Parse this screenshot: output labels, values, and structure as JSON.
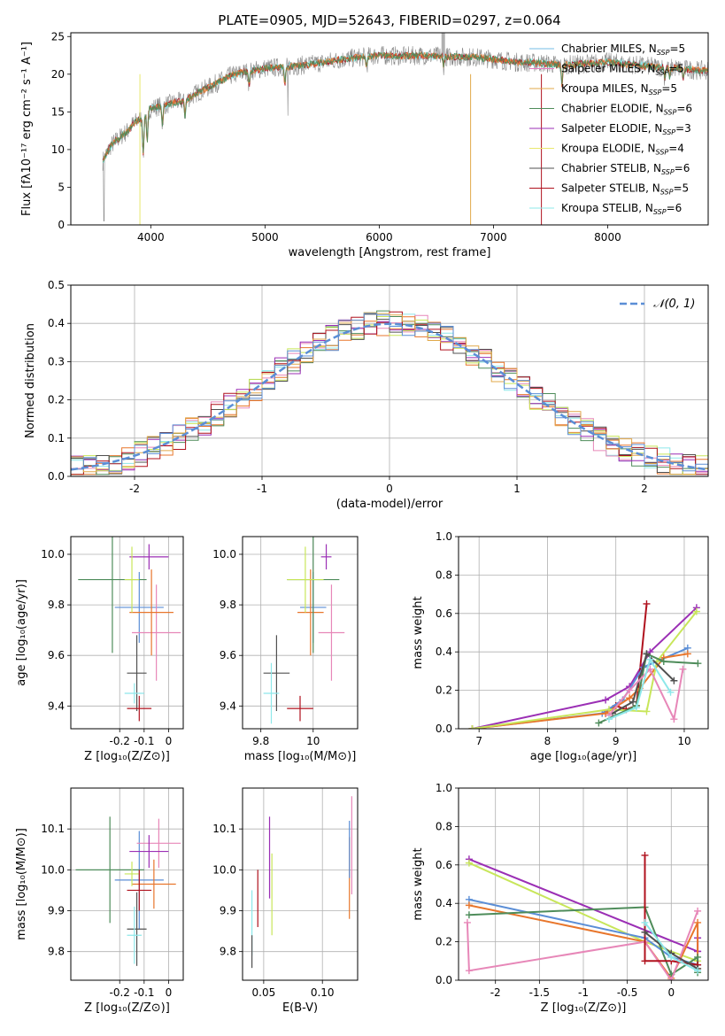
{
  "title": "PLATE=0905, MJD=52643, FIBERID=0297, z=0.064",
  "colors": {
    "chabrier_miles": "#74bde6",
    "salpeter_miles": "#e67ac0",
    "kroupa_miles": "#e1a84a",
    "chabrier_elodie": "#4e8c5a",
    "salpeter_elodie": "#9b2fb5",
    "kroupa_elodie": "#e9e86e",
    "chabrier_stelib": "#505050",
    "salpeter_stelib": "#b0121e",
    "kroupa_stelib": "#8ee8ea",
    "blue": "#5b8ed6",
    "orange": "#e8762c",
    "green": "#c8e65a",
    "pink": "#e787b8",
    "gray_data": "#8a8a8a"
  },
  "chart_data": [
    {
      "id": "spectrum",
      "type": "line",
      "xlabel": "wavelength [Angstrom, rest frame]",
      "ylabel": "Flux [fλ10⁻¹⁷ erg cm⁻² s⁻¹ A⁻¹]",
      "xlim": [
        3300,
        8880
      ],
      "ylim": [
        0,
        25.5
      ],
      "xticks": [
        4000,
        5000,
        6000,
        7000,
        8000
      ],
      "yticks": [
        0,
        5,
        10,
        15,
        20,
        25
      ],
      "envelope": {
        "x": [
          3580,
          3650,
          3720,
          3800,
          3850,
          3950,
          4000,
          4100,
          4200,
          4300,
          4400,
          4500,
          4600,
          4700,
          4800,
          4900,
          5000,
          5200,
          5400,
          5600,
          5800,
          6000,
          6200,
          6400,
          6600,
          6800,
          7000,
          7200,
          7400,
          7600,
          7800,
          8000,
          8200,
          8400,
          8600,
          8800
        ],
        "y": [
          8.5,
          10.5,
          11.5,
          12.5,
          13.5,
          14.5,
          15.5,
          15.8,
          16.2,
          16.5,
          17.5,
          18.2,
          19.0,
          19.8,
          20.2,
          20.5,
          20.8,
          21.0,
          21.3,
          21.8,
          22.2,
          22.5,
          22.4,
          22.5,
          22.3,
          22.3,
          22.0,
          21.6,
          21.5,
          21.2,
          21.4,
          21.6,
          21.3,
          21.0,
          20.8,
          20.5
        ]
      },
      "legend": [
        {
          "label": "Chabrier MILES, N",
          "sub": "SSP",
          "n": "=5",
          "color": "chabrier_miles"
        },
        {
          "label": "Salpeter MILES, N",
          "sub": "SSP",
          "n": "=5",
          "color": "salpeter_miles"
        },
        {
          "label": "Kroupa MILES, N",
          "sub": "SSP",
          "n": "=5",
          "color": "kroupa_miles"
        },
        {
          "label": "Chabrier ELODIE, N",
          "sub": "SSP",
          "n": "=6",
          "color": "chabrier_elodie"
        },
        {
          "label": "Salpeter ELODIE, N",
          "sub": "SSP",
          "n": "=3",
          "color": "salpeter_elodie"
        },
        {
          "label": "Kroupa ELODIE, N",
          "sub": "SSP",
          "n": "=4",
          "color": "kroupa_elodie"
        },
        {
          "label": "Chabrier STELIB, N",
          "sub": "SSP",
          "n": "=6",
          "color": "chabrier_stelib"
        },
        {
          "label": "Salpeter STELIB, N",
          "sub": "SSP",
          "n": "=5",
          "color": "salpeter_stelib"
        },
        {
          "label": "Kroupa STELIB, N",
          "sub": "SSP",
          "n": "=6",
          "color": "kroupa_stelib"
        }
      ]
    },
    {
      "id": "residuals",
      "type": "histogram",
      "xlabel": "(data-model)/error",
      "ylabel": "Normed distribution",
      "xlim": [
        -2.5,
        2.5
      ],
      "ylim": [
        0,
        0.5
      ],
      "xticks": [
        -2,
        -1,
        0,
        1,
        2
      ],
      "yticks": [
        0.0,
        0.1,
        0.2,
        0.3,
        0.4,
        0.5
      ],
      "legend_label": "𝒩(0, 1)",
      "bin_width": 0.1
    },
    {
      "id": "age_vs_z",
      "type": "errorbar",
      "xlabel": "Z [log₁₀(Z/Z⊙)]",
      "ylabel": "age  [log₁₀(age/yr)]",
      "xlim": [
        -0.4,
        0.06
      ],
      "ylim": [
        9.31,
        10.07
      ],
      "xticks": [
        -0.2,
        -0.1,
        0.0
      ],
      "yticks": [
        9.4,
        9.6,
        9.8,
        10.0
      ],
      "points": [
        {
          "x": -0.12,
          "y": 9.79,
          "xerr": 0.1,
          "yerr": 0.14,
          "color": "blue"
        },
        {
          "x": -0.05,
          "y": 9.69,
          "xerr": 0.1,
          "yerr": 0.19,
          "color": "pink"
        },
        {
          "x": -0.07,
          "y": 9.77,
          "xerr": 0.09,
          "yerr": 0.17,
          "color": "orange"
        },
        {
          "x": -0.23,
          "y": 9.9,
          "xerr": 0.14,
          "yerr": 0.29,
          "color": "chabrier_elodie"
        },
        {
          "x": -0.08,
          "y": 9.99,
          "xerr": 0.08,
          "yerr": 0.05,
          "color": "salpeter_elodie"
        },
        {
          "x": -0.15,
          "y": 9.9,
          "xerr": 0.03,
          "yerr": 0.13,
          "color": "green"
        },
        {
          "x": -0.13,
          "y": 9.53,
          "xerr": 0.04,
          "yerr": 0.15,
          "color": "chabrier_stelib"
        },
        {
          "x": -0.12,
          "y": 9.39,
          "xerr": 0.05,
          "yerr": 0.05,
          "color": "salpeter_stelib"
        },
        {
          "x": -0.14,
          "y": 9.45,
          "xerr": 0.04,
          "yerr": 0.04,
          "color": "kroupa_stelib"
        }
      ]
    },
    {
      "id": "age_vs_mass",
      "type": "errorbar",
      "xlabel": "mass [log₁₀(M/M⊙)]",
      "ylabel": "",
      "xlim": [
        9.73,
        10.17
      ],
      "ylim": [
        9.31,
        10.07
      ],
      "xticks": [
        9.8,
        10.0
      ],
      "yticks": [
        9.4,
        9.6,
        9.8,
        10.0
      ],
      "points": [
        {
          "x": 10.0,
          "y": 9.79,
          "xerr": 0.05,
          "yerr": 0.14,
          "color": "blue"
        },
        {
          "x": 10.07,
          "y": 9.69,
          "xerr": 0.05,
          "yerr": 0.19,
          "color": "pink"
        },
        {
          "x": 9.99,
          "y": 9.77,
          "xerr": 0.05,
          "yerr": 0.17,
          "color": "orange"
        },
        {
          "x": 10.0,
          "y": 9.9,
          "xerr": 0.1,
          "yerr": 0.29,
          "color": "chabrier_elodie"
        },
        {
          "x": 10.05,
          "y": 9.99,
          "xerr": 0.02,
          "yerr": 0.05,
          "color": "salpeter_elodie"
        },
        {
          "x": 9.97,
          "y": 9.9,
          "xerr": 0.07,
          "yerr": 0.13,
          "color": "green"
        },
        {
          "x": 9.86,
          "y": 9.53,
          "xerr": 0.05,
          "yerr": 0.15,
          "color": "chabrier_stelib"
        },
        {
          "x": 9.95,
          "y": 9.39,
          "xerr": 0.05,
          "yerr": 0.05,
          "color": "salpeter_stelib"
        },
        {
          "x": 9.84,
          "y": 9.45,
          "xerr": 0.03,
          "yerr": 0.12,
          "color": "kroupa_stelib"
        }
      ]
    },
    {
      "id": "weight_vs_age",
      "type": "line",
      "xlabel": "age  [log₁₀(age/yr)]",
      "ylabel": "mass weight",
      "xlim": [
        6.7,
        10.35
      ],
      "ylim": [
        0,
        1
      ],
      "xticks": [
        7,
        8,
        9,
        10
      ],
      "yticks": [
        0.0,
        0.2,
        0.4,
        0.6,
        0.8,
        1.0
      ],
      "series": [
        {
          "color": "salpeter_elodie",
          "x": [
            6.9,
            8.85,
            9.2,
            9.5,
            10.18
          ],
          "y": [
            0.0,
            0.15,
            0.22,
            0.4,
            0.63
          ]
        },
        {
          "color": "salpeter_stelib",
          "x": [
            8.85,
            9.0,
            9.15,
            9.3,
            9.45
          ],
          "y": [
            0.08,
            0.12,
            0.1,
            0.12,
            0.65
          ]
        },
        {
          "color": "blue",
          "x": [
            6.9,
            8.8,
            9.1,
            9.4,
            10.05
          ],
          "y": [
            0.0,
            0.08,
            0.15,
            0.32,
            0.42
          ]
        },
        {
          "color": "orange",
          "x": [
            6.9,
            8.85,
            9.2,
            9.35,
            9.7,
            10.05
          ],
          "y": [
            0.0,
            0.08,
            0.16,
            0.21,
            0.37,
            0.39
          ]
        },
        {
          "color": "green",
          "x": [
            6.9,
            8.9,
            9.45,
            9.6,
            10.18
          ],
          "y": [
            0.0,
            0.1,
            0.09,
            0.35,
            0.61
          ]
        },
        {
          "color": "chabrier_elodie",
          "x": [
            8.75,
            9.3,
            9.45,
            9.7,
            10.2
          ],
          "y": [
            0.03,
            0.12,
            0.39,
            0.35,
            0.34
          ]
        },
        {
          "color": "chabrier_stelib",
          "x": [
            8.95,
            9.25,
            9.45,
            9.85
          ],
          "y": [
            0.08,
            0.14,
            0.39,
            0.25
          ]
        },
        {
          "color": "pink",
          "x": [
            8.9,
            9.2,
            9.5,
            9.85,
            9.98
          ],
          "y": [
            0.07,
            0.2,
            0.31,
            0.05,
            0.31
          ]
        },
        {
          "color": "kroupa_stelib",
          "x": [
            8.9,
            9.3,
            9.5,
            9.8
          ],
          "y": [
            0.05,
            0.11,
            0.36,
            0.19
          ]
        }
      ]
    },
    {
      "id": "mass_vs_z",
      "type": "errorbar",
      "xlabel": "Z [log₁₀(Z/Z⊙)]",
      "ylabel": "mass [log₁₀(M/M⊙)]",
      "xlim": [
        -0.4,
        0.06
      ],
      "ylim": [
        9.73,
        10.2
      ],
      "xticks": [
        -0.2,
        -0.1,
        0.0
      ],
      "yticks": [
        9.8,
        9.9,
        10.0,
        10.1
      ],
      "points": [
        {
          "x": -0.12,
          "y": 9.975,
          "xerr": 0.1,
          "yerr": 0.12,
          "color": "blue"
        },
        {
          "x": -0.04,
          "y": 10.065,
          "xerr": 0.09,
          "yerr": 0.06,
          "color": "pink"
        },
        {
          "x": -0.06,
          "y": 9.965,
          "xerr": 0.09,
          "yerr": 0.06,
          "color": "orange"
        },
        {
          "x": -0.24,
          "y": 10.0,
          "xerr": 0.14,
          "yerr": 0.13,
          "color": "chabrier_elodie"
        },
        {
          "x": -0.08,
          "y": 10.045,
          "xerr": 0.08,
          "yerr": 0.04,
          "color": "salpeter_elodie"
        },
        {
          "x": -0.15,
          "y": 9.99,
          "xerr": 0.03,
          "yerr": 0.03,
          "color": "green"
        },
        {
          "x": -0.13,
          "y": 9.855,
          "xerr": 0.04,
          "yerr": 0.09,
          "color": "chabrier_stelib"
        },
        {
          "x": -0.12,
          "y": 9.95,
          "xerr": 0.05,
          "yerr": 0.05,
          "color": "salpeter_stelib"
        },
        {
          "x": -0.14,
          "y": 9.84,
          "xerr": 0.03,
          "yerr": 0.07,
          "color": "kroupa_stelib"
        }
      ]
    },
    {
      "id": "mass_vs_ebv",
      "type": "errorbar",
      "xlabel": "E(B-V)",
      "ylabel": "",
      "xlim": [
        0.032,
        0.13
      ],
      "ylim": [
        9.73,
        10.2
      ],
      "xticks": [
        0.05,
        0.1
      ],
      "xticklabels": [
        "0.05",
        "0.10"
      ],
      "yticks": [
        9.8,
        9.9,
        10.0,
        10.1
      ],
      "points": [
        {
          "x": 0.04,
          "y": 9.87,
          "xerr": 0,
          "yerr": 0.08,
          "color": "kroupa_stelib"
        },
        {
          "x": 0.04,
          "y": 9.8,
          "xerr": 0,
          "yerr": 0.04,
          "color": "chabrier_stelib"
        },
        {
          "x": 0.045,
          "y": 9.93,
          "xerr": 0,
          "yerr": 0.07,
          "color": "salpeter_stelib"
        },
        {
          "x": 0.055,
          "y": 10.03,
          "xerr": 0,
          "yerr": 0.1,
          "color": "salpeter_elodie"
        },
        {
          "x": 0.057,
          "y": 9.94,
          "xerr": 0,
          "yerr": 0.1,
          "color": "green"
        },
        {
          "x": 0.123,
          "y": 9.98,
          "xerr": 0,
          "yerr": 0.1,
          "color": "orange"
        },
        {
          "x": 0.125,
          "y": 10.06,
          "xerr": 0,
          "yerr": 0.12,
          "color": "pink"
        },
        {
          "x": 0.123,
          "y": 10.05,
          "xerr": 0,
          "yerr": 0.07,
          "color": "blue"
        }
      ]
    },
    {
      "id": "weight_vs_z",
      "type": "line",
      "xlabel": "Z [log₁₀(Z/Z⊙)]",
      "ylabel": "mass weight",
      "xlim": [
        -2.42,
        0.42
      ],
      "ylim": [
        0,
        1
      ],
      "xticks": [
        -2.0,
        -1.5,
        -1.0,
        -0.5,
        0.0
      ],
      "yticks": [
        0.0,
        0.2,
        0.4,
        0.6,
        0.8,
        1.0
      ],
      "series": [
        {
          "color": "salpeter_elodie",
          "x": [
            -2.3,
            0.3
          ],
          "y": [
            0.63,
            0.15
          ]
        },
        {
          "color": "salpeter_elodie",
          "x": [
            0.3,
            0.3
          ],
          "y": [
            0.15,
            0.22
          ]
        },
        {
          "color": "green",
          "x": [
            -2.3,
            -0.3,
            0.3
          ],
          "y": [
            0.61,
            0.2,
            0.1
          ]
        },
        {
          "color": "blue",
          "x": [
            -2.3,
            -0.3,
            0.0,
            0.3
          ],
          "y": [
            0.42,
            0.22,
            0.12,
            0.08
          ]
        },
        {
          "color": "orange",
          "x": [
            -2.3,
            -0.3,
            0.0,
            0.3,
            0.3
          ],
          "y": [
            0.39,
            0.2,
            0.01,
            0.3,
            0.06
          ]
        },
        {
          "color": "chabrier_elodie",
          "x": [
            -2.3,
            -0.3,
            0.0,
            0.3,
            0.3
          ],
          "y": [
            0.34,
            0.38,
            0.03,
            0.12,
            0.04
          ]
        },
        {
          "color": "pink",
          "x": [
            -2.32,
            -2.3,
            -0.3,
            0.0,
            0.3
          ],
          "y": [
            0.3,
            0.05,
            0.2,
            0.0,
            0.36
          ]
        },
        {
          "color": "salpeter_stelib",
          "x": [
            -0.3,
            -0.3,
            0.0,
            0.3
          ],
          "y": [
            0.65,
            0.1,
            0.1,
            0.08
          ]
        },
        {
          "color": "chabrier_stelib",
          "x": [
            -0.3,
            0.0,
            0.3
          ],
          "y": [
            0.25,
            0.14,
            0.06
          ]
        },
        {
          "color": "kroupa_stelib",
          "x": [
            -0.3,
            0.0,
            0.3
          ],
          "y": [
            0.3,
            0.12,
            0.05
          ]
        }
      ]
    }
  ]
}
